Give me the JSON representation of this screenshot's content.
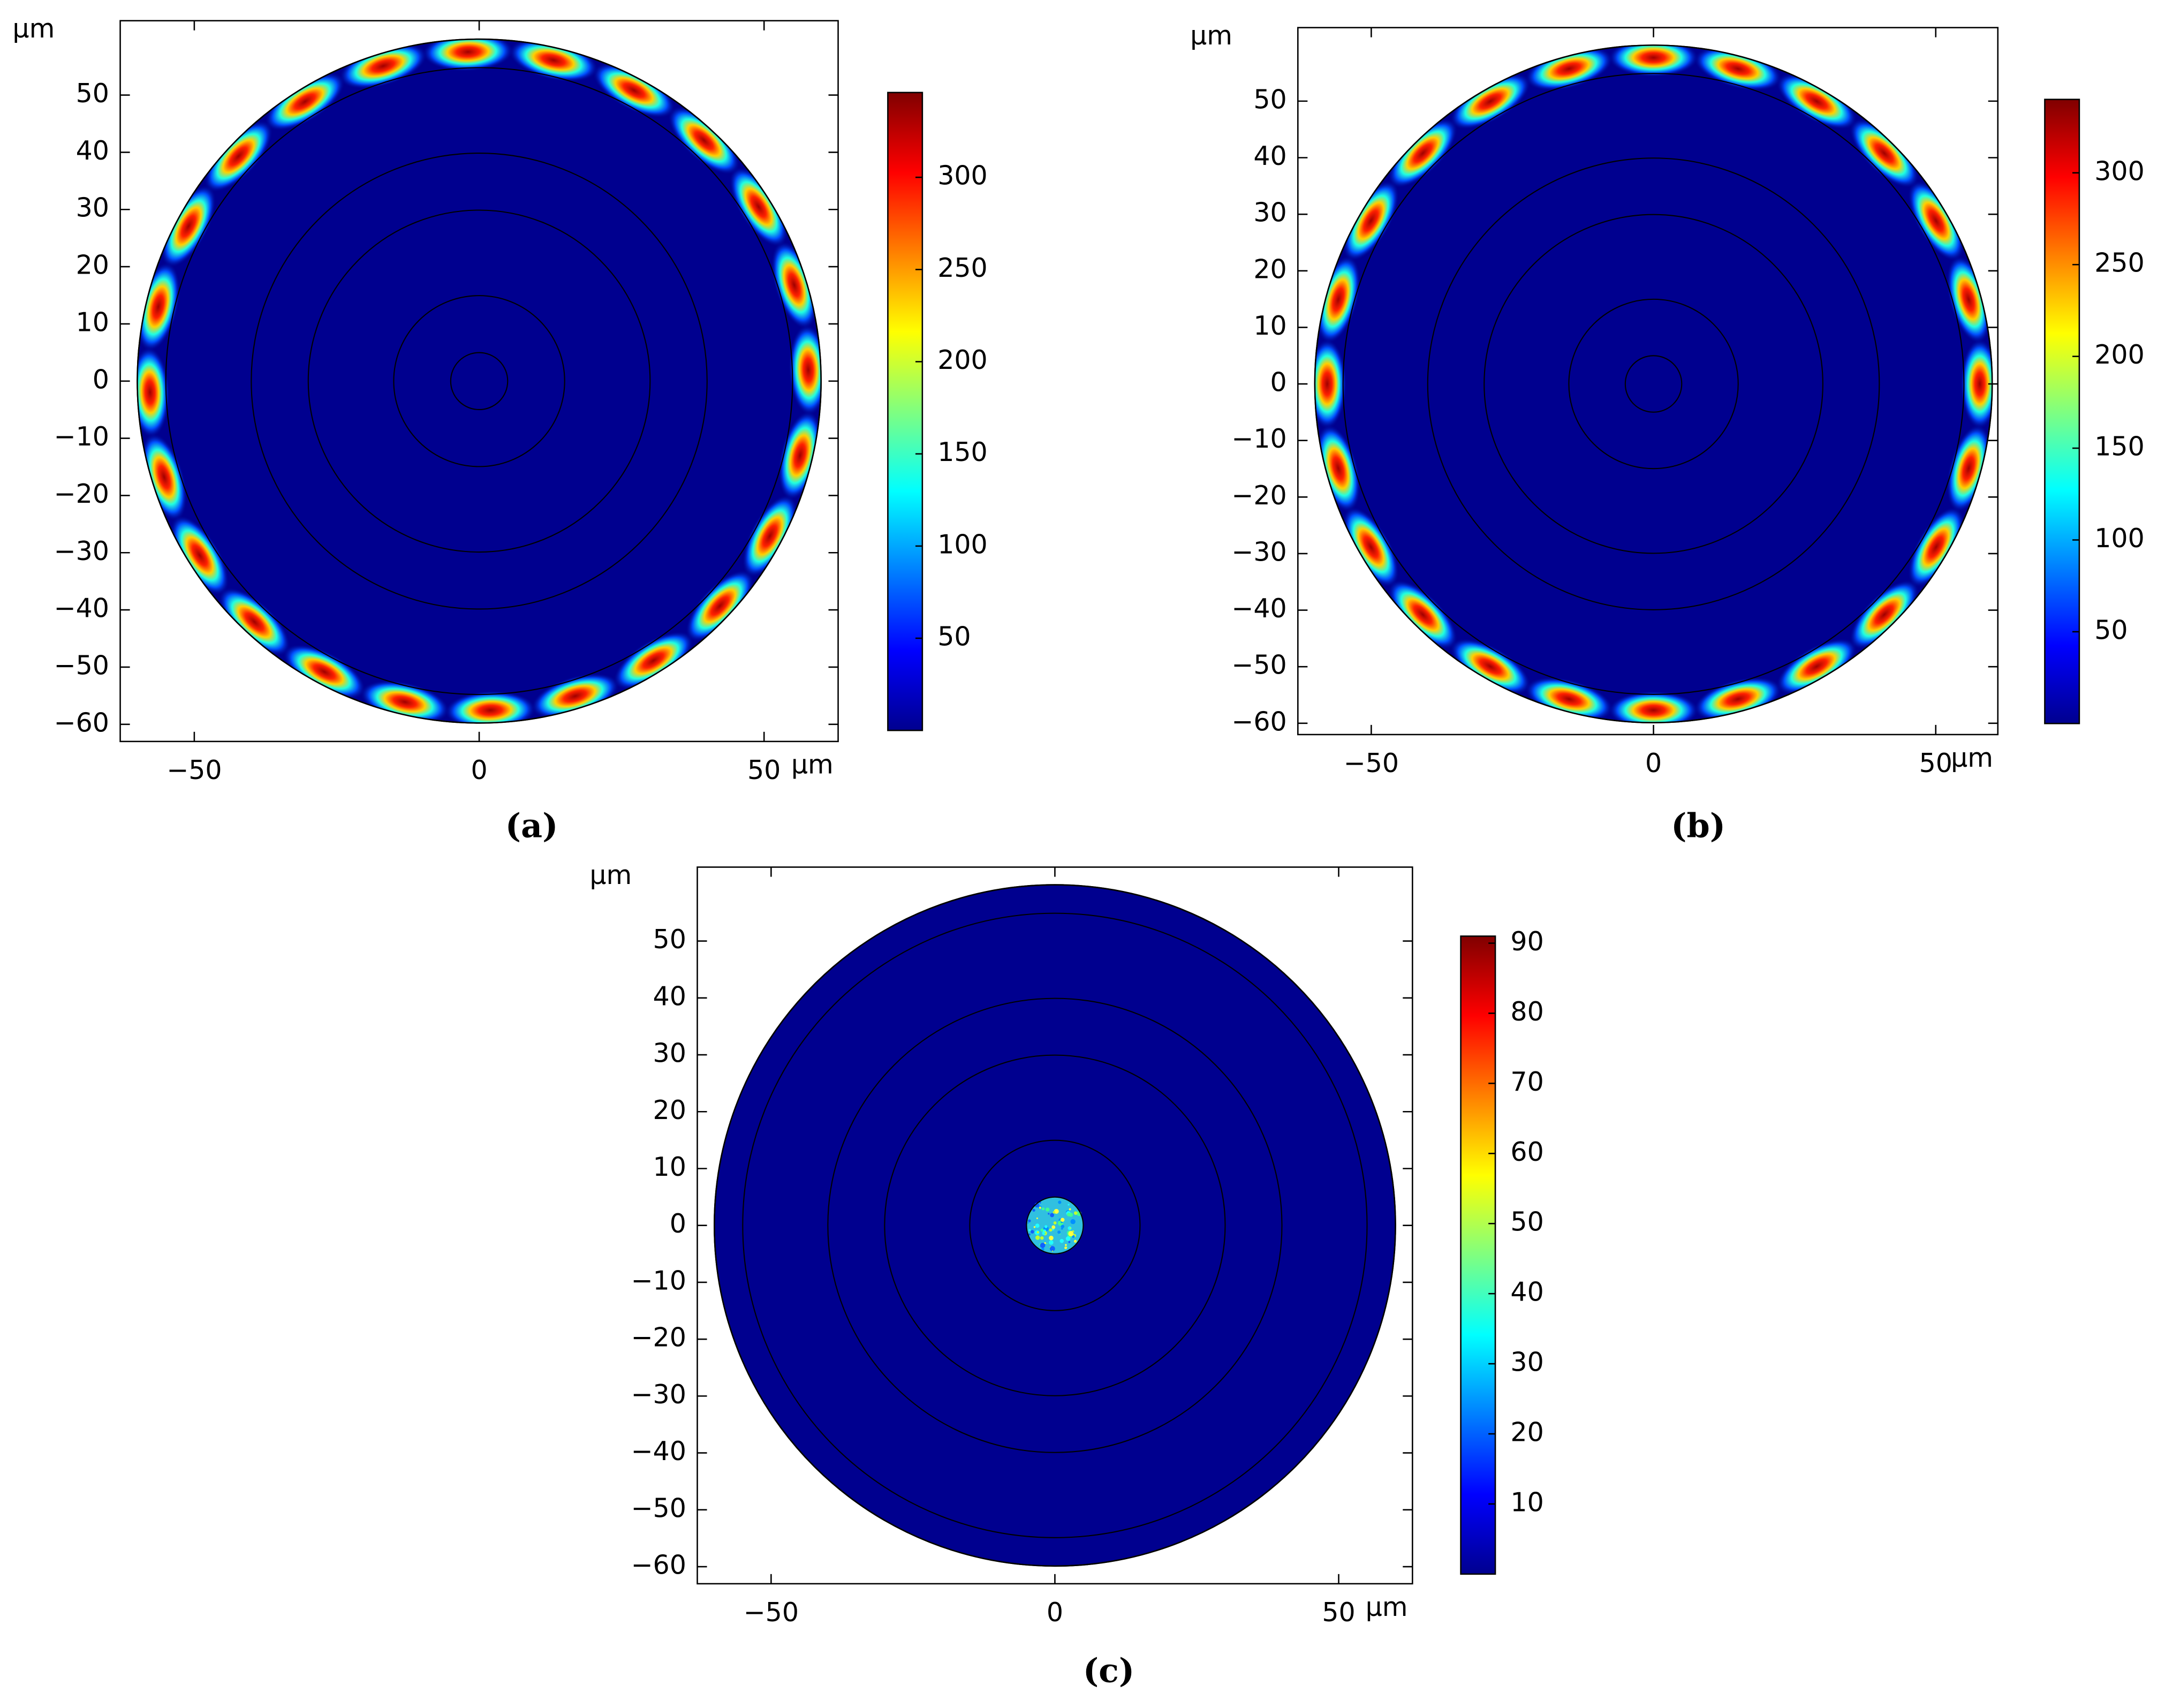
{
  "chart_data": [
    {
      "type": "heatmap",
      "label": "(a)",
      "xlabel": "μm",
      "ylabel": "μm",
      "xlim": [
        -63,
        63
      ],
      "ylim": [
        -63,
        63
      ],
      "xticks": [
        {
          "value": -50,
          "label": "−50"
        },
        0,
        50
      ],
      "yticks": [
        {
          "value": -60,
          "label": "−60"
        },
        {
          "value": -50,
          "label": "−50"
        },
        {
          "value": -40,
          "label": "−40"
        },
        {
          "value": -30,
          "label": "−30"
        },
        {
          "value": -20,
          "label": "−20"
        },
        {
          "value": -10,
          "label": "−10"
        },
        0,
        10,
        20,
        30,
        40,
        50
      ],
      "clim": [
        0,
        346
      ],
      "cticks": [
        50,
        100,
        150,
        200,
        250,
        300
      ]
    },
    {
      "type": "heatmap",
      "label": "(b)",
      "xlabel": "μm",
      "ylabel": "μm",
      "xlim": [
        -63,
        61
      ],
      "ylim": [
        -62,
        63
      ],
      "xticks": [
        {
          "value": -50,
          "label": "−50"
        },
        0,
        50
      ],
      "yticks": [
        {
          "value": -60,
          "label": "−60"
        },
        {
          "value": -50,
          "label": "−50"
        },
        {
          "value": -40,
          "label": "−40"
        },
        {
          "value": -30,
          "label": "−30"
        },
        {
          "value": -20,
          "label": "−20"
        },
        {
          "value": -10,
          "label": "−10"
        },
        0,
        10,
        20,
        30,
        40,
        50
      ],
      "clim": [
        0,
        340
      ],
      "cticks": [
        50,
        100,
        150,
        200,
        250,
        300
      ]
    },
    {
      "type": "heatmap",
      "label": "(c)",
      "xlabel": "μm",
      "ylabel": "μm",
      "xlim": [
        -63,
        63
      ],
      "ylim": [
        -63,
        63
      ],
      "xticks": [
        {
          "value": -50,
          "label": "−50"
        },
        0,
        50
      ],
      "yticks": [
        {
          "value": -60,
          "label": "−60"
        },
        {
          "value": -50,
          "label": "−50"
        },
        {
          "value": -40,
          "label": "−40"
        },
        {
          "value": -30,
          "label": "−30"
        },
        {
          "value": -20,
          "label": "−20"
        },
        {
          "value": -10,
          "label": "−10"
        },
        0,
        10,
        20,
        30,
        40,
        50
      ],
      "clim": [
        0,
        91
      ],
      "cticks": [
        10,
        20,
        30,
        40,
        50,
        60,
        70,
        80,
        90
      ]
    }
  ]
}
